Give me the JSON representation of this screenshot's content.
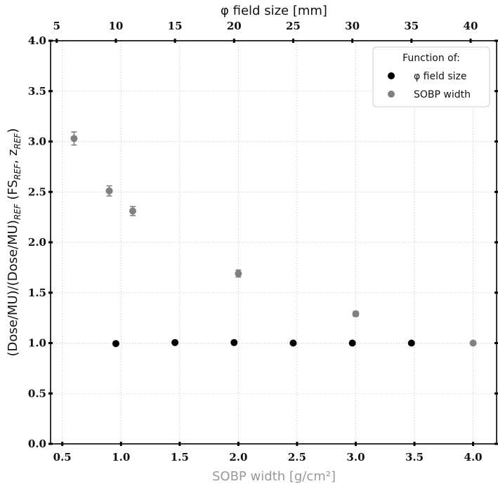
{
  "chart_data": {
    "type": "scatter",
    "title": "",
    "xlabel": "SOBP width [g/cm²]",
    "xlabel_color": "#999999",
    "x2label": "φ field size [mm]",
    "ylabel_parts": {
      "main": "(Dose/MU)/(Dose/MU)",
      "sub1": "REF",
      "mid": " (FS",
      "sub2": "REF",
      "comma": ", z",
      "sub3": "REF",
      "close": ")"
    },
    "xlim": [
      0.4,
      4.2
    ],
    "ylim": [
      0.0,
      4.0
    ],
    "x2lim": [
      4.48,
      42.2
    ],
    "grid": true,
    "x_ticks": [
      "0.5",
      "1.0",
      "1.5",
      "2.0",
      "2.5",
      "3.0",
      "3.5",
      "4.0"
    ],
    "y_ticks": [
      "0.0",
      "0.5",
      "1.0",
      "1.5",
      "2.0",
      "2.5",
      "3.0",
      "3.5",
      "4.0"
    ],
    "x2_ticks": [
      "5",
      "10",
      "15",
      "20",
      "25",
      "30",
      "35",
      "40"
    ],
    "legend": {
      "title": "Function of:",
      "position": "top-right",
      "entries": [
        "φ field size",
        "SOBP width"
      ]
    },
    "series": [
      {
        "name": "φ field size",
        "color": "#000000",
        "axis": "top",
        "x": [
          10,
          15,
          20,
          25,
          30,
          35
        ],
        "y": [
          0.995,
          1.005,
          1.005,
          1.0,
          1.0,
          1.0
        ],
        "err": [
          0.012,
          0.012,
          0.012,
          0.012,
          0.012,
          0.012
        ]
      },
      {
        "name": "SOBP width",
        "color": "#808080",
        "axis": "bottom",
        "x": [
          0.6,
          0.9,
          1.1,
          2.0,
          3.0,
          4.0
        ],
        "y": [
          3.03,
          2.51,
          2.31,
          1.69,
          1.29,
          1.0
        ],
        "err": [
          0.065,
          0.05,
          0.045,
          0.035,
          0.025,
          0.0
        ]
      }
    ]
  }
}
